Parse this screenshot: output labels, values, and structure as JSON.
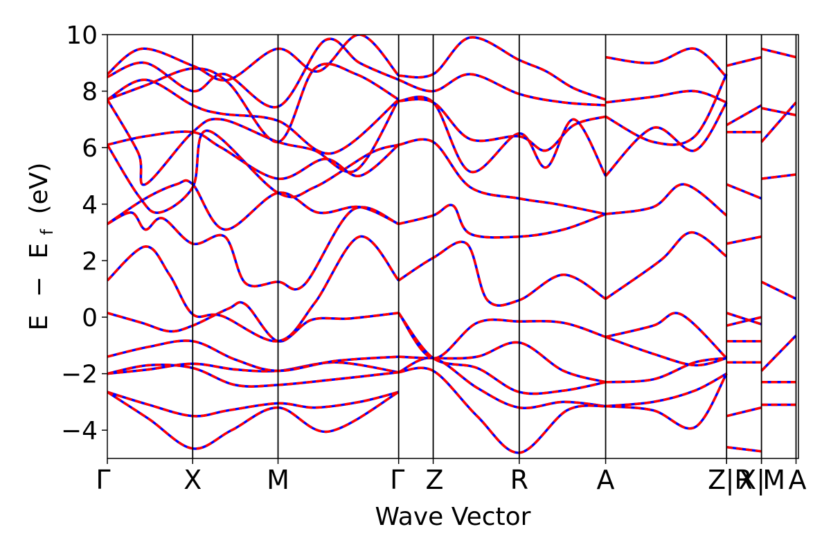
{
  "chart_data": {
    "type": "line",
    "title": "",
    "xlabel": "Wave Vector",
    "ylabel_parts": [
      "E",
      "−",
      "E",
      "f",
      "(eV)"
    ],
    "ylim": [
      -5,
      10
    ],
    "yticks": [
      -4,
      -2,
      0,
      2,
      4,
      6,
      8,
      10
    ],
    "ytick_labels": [
      "−4",
      "−2",
      "0",
      "2",
      "4",
      "6",
      "8",
      "10"
    ],
    "xlim": [
      0,
      20
    ],
    "high_symmetry_points": [
      {
        "label": "Γ",
        "x": 0
      },
      {
        "label": "X",
        "x": 2.47
      },
      {
        "label": "M",
        "x": 4.94
      },
      {
        "label": "Γ",
        "x": 8.43
      },
      {
        "label": "Z",
        "x": 9.43
      },
      {
        "label": "R",
        "x": 11.92
      },
      {
        "label": "A",
        "x": 14.42
      },
      {
        "label": "Z",
        "x": 17.92
      },
      {
        "label": "|R",
        "x": 17.92
      },
      {
        "label": "X|",
        "x": 18.93
      },
      {
        "label": "M",
        "x": 18.93
      },
      {
        "label": "A",
        "x": 19.93
      }
    ],
    "grid": false,
    "legend": "none",
    "series_styles": [
      {
        "role": "reference",
        "color": "#0000ff",
        "style": "solid"
      },
      {
        "role": "overlay",
        "color": "#ff0000",
        "style": "dashed"
      }
    ],
    "bands": [
      [
        [
          0,
          -2.65
        ],
        [
          1.2,
          -3.1
        ],
        [
          2.47,
          -3.5
        ],
        [
          3.5,
          -3.3
        ],
        [
          4.94,
          -3.05
        ],
        [
          6,
          -3.2
        ],
        [
          7.3,
          -3.0
        ],
        [
          8.43,
          -2.65
        ]
      ],
      [
        [
          0,
          -2.65
        ],
        [
          1.2,
          -3.6
        ],
        [
          2.47,
          -4.65
        ],
        [
          3.6,
          -4.0
        ],
        [
          4.94,
          -3.2
        ],
        [
          6.4,
          -4.05
        ],
        [
          8.43,
          -2.65
        ]
      ],
      [
        [
          0,
          -2.0
        ],
        [
          1.2,
          -1.85
        ],
        [
          2.47,
          -1.65
        ],
        [
          3.7,
          -1.85
        ],
        [
          4.94,
          -1.9
        ],
        [
          6.6,
          -1.6
        ],
        [
          8.43,
          -1.95
        ]
      ],
      [
        [
          0,
          -2.0
        ],
        [
          1.2,
          -1.7
        ],
        [
          2.47,
          -1.8
        ],
        [
          3.7,
          -2.4
        ],
        [
          4.94,
          -2.4
        ],
        [
          6.6,
          -2.2
        ],
        [
          8.43,
          -1.95
        ]
      ],
      [
        [
          0,
          -1.4
        ],
        [
          1.2,
          -1.05
        ],
        [
          2.47,
          -0.85
        ],
        [
          3.7,
          -1.5
        ],
        [
          4.94,
          -1.9
        ],
        [
          6.6,
          -1.55
        ],
        [
          8.43,
          -1.4
        ]
      ],
      [
        [
          0,
          0.15
        ],
        [
          1.0,
          -0.2
        ],
        [
          1.8,
          -0.5
        ],
        [
          2.47,
          -0.3
        ],
        [
          3.5,
          0.3
        ],
        [
          4.0,
          0.45
        ],
        [
          4.94,
          -0.85
        ],
        [
          5.9,
          -0.1
        ],
        [
          7.0,
          -0.05
        ],
        [
          8.43,
          0.15
        ]
      ],
      [
        [
          0,
          1.3
        ],
        [
          1.1,
          2.5
        ],
        [
          1.8,
          1.5
        ],
        [
          2.47,
          0.1
        ],
        [
          3.3,
          0.05
        ],
        [
          4.94,
          -0.85
        ],
        [
          6.0,
          0.5
        ],
        [
          7.3,
          2.85
        ],
        [
          8.43,
          1.3
        ]
      ],
      [
        [
          0,
          3.3
        ],
        [
          0.7,
          3.7
        ],
        [
          1.1,
          3.1
        ],
        [
          1.6,
          3.5
        ],
        [
          2.47,
          2.6
        ],
        [
          3.4,
          2.85
        ],
        [
          4.0,
          1.2
        ],
        [
          4.94,
          1.25
        ],
        [
          5.7,
          1.15
        ],
        [
          7.1,
          3.8
        ],
        [
          8.43,
          3.3
        ]
      ],
      [
        [
          0,
          3.3
        ],
        [
          1.1,
          4.2
        ],
        [
          2.0,
          4.7
        ],
        [
          2.47,
          4.7
        ],
        [
          3.4,
          3.1
        ],
        [
          4.94,
          4.4
        ],
        [
          6.1,
          3.7
        ],
        [
          7.3,
          3.9
        ],
        [
          8.43,
          3.3
        ]
      ],
      [
        [
          0,
          6.1
        ],
        [
          0.9,
          4.3
        ],
        [
          1.5,
          3.7
        ],
        [
          2.47,
          4.6
        ],
        [
          2.9,
          6.6
        ],
        [
          4.94,
          4.4
        ],
        [
          6.0,
          4.6
        ],
        [
          7.6,
          5.8
        ],
        [
          8.43,
          6.1
        ]
      ],
      [
        [
          0,
          6.1
        ],
        [
          1.1,
          6.4
        ],
        [
          2.47,
          6.55
        ],
        [
          3.3,
          6.0
        ],
        [
          4.94,
          4.9
        ],
        [
          6.3,
          5.6
        ],
        [
          7.3,
          5.0
        ],
        [
          8.43,
          6.1
        ]
      ],
      [
        [
          0,
          7.7
        ],
        [
          0.9,
          5.8
        ],
        [
          1.1,
          4.7
        ],
        [
          2.47,
          6.55
        ],
        [
          3.3,
          7.0
        ],
        [
          4.94,
          6.2
        ],
        [
          6.0,
          5.9
        ],
        [
          7.2,
          5.2
        ],
        [
          8.43,
          7.7
        ]
      ],
      [
        [
          0,
          7.7
        ],
        [
          1.1,
          8.4
        ],
        [
          2.47,
          7.5
        ],
        [
          3.3,
          7.2
        ],
        [
          4.94,
          6.95
        ],
        [
          6.5,
          5.8
        ],
        [
          8.43,
          7.7
        ]
      ],
      [
        [
          0,
          7.7
        ],
        [
          1.1,
          8.2
        ],
        [
          2.47,
          8.8
        ],
        [
          3.5,
          8.3
        ],
        [
          4.94,
          6.2
        ],
        [
          6.0,
          8.8
        ],
        [
          7.2,
          8.6
        ],
        [
          8.43,
          7.7
        ]
      ],
      [
        [
          0,
          8.5
        ],
        [
          1.1,
          9.0
        ],
        [
          2.47,
          8.0
        ],
        [
          3.4,
          8.6
        ],
        [
          4.94,
          7.45
        ],
        [
          6.3,
          9.8
        ],
        [
          7.3,
          9.0
        ],
        [
          8.43,
          8.4
        ]
      ],
      [
        [
          0,
          8.6
        ],
        [
          1.0,
          9.5
        ],
        [
          2.47,
          8.9
        ],
        [
          3.5,
          8.4
        ],
        [
          4.94,
          9.5
        ],
        [
          6.1,
          8.7
        ],
        [
          7.3,
          10.0
        ],
        [
          8.43,
          8.55
        ]
      ],
      [
        [
          8.43,
          -1.95
        ],
        [
          9.43,
          -1.45
        ],
        [
          10.7,
          -2.5
        ],
        [
          11.92,
          -3.2
        ],
        [
          13.2,
          -3.0
        ],
        [
          14.42,
          -3.15
        ]
      ],
      [
        [
          8.43,
          -1.95
        ],
        [
          9.43,
          -1.9
        ],
        [
          10.7,
          -3.5
        ],
        [
          11.92,
          -4.8
        ],
        [
          13.3,
          -3.3
        ],
        [
          14.42,
          -3.15
        ]
      ],
      [
        [
          8.43,
          -1.4
        ],
        [
          9.43,
          -1.45
        ],
        [
          10.7,
          -1.4
        ],
        [
          11.92,
          -0.9
        ],
        [
          13.2,
          -1.9
        ],
        [
          14.42,
          -2.3
        ]
      ],
      [
        [
          8.43,
          0.15
        ],
        [
          9.43,
          -1.45
        ],
        [
          10.7,
          -0.2
        ],
        [
          11.92,
          -0.15
        ],
        [
          13.2,
          -0.2
        ],
        [
          14.42,
          -0.7
        ]
      ],
      [
        [
          8.43,
          0.15
        ],
        [
          9.43,
          -1.45
        ],
        [
          10.7,
          -1.8
        ],
        [
          11.92,
          -2.65
        ],
        [
          13.2,
          -2.6
        ],
        [
          14.42,
          -2.3
        ]
      ],
      [
        [
          8.43,
          1.3
        ],
        [
          9.43,
          2.1
        ],
        [
          10.4,
          2.6
        ],
        [
          11.0,
          0.6
        ],
        [
          11.92,
          0.6
        ],
        [
          13.2,
          1.5
        ],
        [
          14.42,
          0.65
        ]
      ],
      [
        [
          8.43,
          3.3
        ],
        [
          9.43,
          3.6
        ],
        [
          10.0,
          3.95
        ],
        [
          10.5,
          2.95
        ],
        [
          11.92,
          2.85
        ],
        [
          13.2,
          3.1
        ],
        [
          14.42,
          3.65
        ]
      ],
      [
        [
          8.43,
          6.1
        ],
        [
          9.43,
          6.2
        ],
        [
          10.5,
          4.6
        ],
        [
          11.92,
          4.2
        ],
        [
          13.0,
          4.0
        ],
        [
          14.42,
          3.65
        ]
      ],
      [
        [
          8.43,
          7.65
        ],
        [
          9.43,
          7.6
        ],
        [
          10.5,
          5.15
        ],
        [
          11.92,
          6.5
        ],
        [
          12.7,
          5.3
        ],
        [
          13.5,
          7.0
        ],
        [
          14.42,
          5.0
        ]
      ],
      [
        [
          8.43,
          7.65
        ],
        [
          9.43,
          7.6
        ],
        [
          10.5,
          6.3
        ],
        [
          11.92,
          6.4
        ],
        [
          12.7,
          5.9
        ],
        [
          13.5,
          6.8
        ],
        [
          14.42,
          7.1
        ]
      ],
      [
        [
          8.43,
          8.4
        ],
        [
          9.43,
          8.0
        ],
        [
          10.5,
          8.6
        ],
        [
          11.92,
          7.9
        ],
        [
          13.2,
          7.6
        ],
        [
          14.42,
          7.5
        ]
      ],
      [
        [
          8.43,
          8.55
        ],
        [
          9.43,
          8.6
        ],
        [
          10.5,
          9.9
        ],
        [
          11.92,
          9.1
        ],
        [
          12.7,
          8.7
        ],
        [
          13.5,
          8.1
        ],
        [
          14.42,
          7.7
        ]
      ],
      [
        [
          14.42,
          -3.15
        ],
        [
          15.8,
          -3.0
        ],
        [
          17.0,
          -2.6
        ],
        [
          17.92,
          -2.0
        ]
      ],
      [
        [
          14.42,
          -3.15
        ],
        [
          15.8,
          -3.3
        ],
        [
          17.0,
          -3.9
        ],
        [
          17.92,
          -2.0
        ]
      ],
      [
        [
          14.42,
          -2.3
        ],
        [
          15.8,
          -2.2
        ],
        [
          17.0,
          -1.6
        ],
        [
          17.92,
          -1.45
        ]
      ],
      [
        [
          14.42,
          -0.7
        ],
        [
          15.8,
          -1.3
        ],
        [
          17.0,
          -1.7
        ],
        [
          17.92,
          -1.45
        ]
      ],
      [
        [
          14.42,
          -0.7
        ],
        [
          15.8,
          -0.3
        ],
        [
          16.6,
          0.1
        ],
        [
          17.92,
          -1.45
        ]
      ],
      [
        [
          14.42,
          0.65
        ],
        [
          16.0,
          2.0
        ],
        [
          16.9,
          3.0
        ],
        [
          17.92,
          2.15
        ]
      ],
      [
        [
          14.42,
          3.65
        ],
        [
          15.8,
          3.9
        ],
        [
          16.7,
          4.7
        ],
        [
          17.92,
          3.6
        ]
      ],
      [
        [
          14.42,
          5.0
        ],
        [
          15.8,
          6.7
        ],
        [
          17.0,
          5.9
        ],
        [
          17.92,
          7.6
        ]
      ],
      [
        [
          14.42,
          7.1
        ],
        [
          15.8,
          6.2
        ],
        [
          17.0,
          6.4
        ],
        [
          17.92,
          8.6
        ]
      ],
      [
        [
          14.42,
          7.6
        ],
        [
          15.8,
          7.8
        ],
        [
          17.0,
          8.0
        ],
        [
          17.92,
          7.6
        ]
      ],
      [
        [
          14.42,
          9.2
        ],
        [
          15.8,
          9.0
        ],
        [
          17.0,
          9.5
        ],
        [
          17.92,
          8.5
        ]
      ],
      [
        [
          17.92,
          -4.6
        ],
        [
          18.93,
          -4.75
        ]
      ],
      [
        [
          17.92,
          -3.5
        ],
        [
          18.93,
          -3.2
        ]
      ],
      [
        [
          17.92,
          -1.6
        ],
        [
          18.93,
          -1.6
        ]
      ],
      [
        [
          17.92,
          -0.85
        ],
        [
          18.93,
          -0.85
        ]
      ],
      [
        [
          17.92,
          -0.3
        ],
        [
          18.93,
          0.0
        ]
      ],
      [
        [
          17.92,
          0.15
        ],
        [
          18.93,
          -0.25
        ]
      ],
      [
        [
          17.92,
          2.6
        ],
        [
          18.93,
          2.85
        ]
      ],
      [
        [
          17.92,
          4.7
        ],
        [
          18.93,
          4.2
        ]
      ],
      [
        [
          17.92,
          6.55
        ],
        [
          18.93,
          6.55
        ]
      ],
      [
        [
          17.92,
          6.8
        ],
        [
          18.93,
          7.5
        ]
      ],
      [
        [
          17.92,
          8.9
        ],
        [
          18.93,
          9.2
        ]
      ],
      [
        [
          18.93,
          -3.1
        ],
        [
          19.93,
          -3.1
        ]
      ],
      [
        [
          18.93,
          -2.3
        ],
        [
          19.93,
          -2.3
        ]
      ],
      [
        [
          18.93,
          -1.9
        ],
        [
          19.93,
          -0.65
        ]
      ],
      [
        [
          18.93,
          1.25
        ],
        [
          19.93,
          0.65
        ]
      ],
      [
        [
          18.93,
          4.9
        ],
        [
          19.93,
          5.05
        ]
      ],
      [
        [
          18.93,
          6.2
        ],
        [
          19.93,
          7.6
        ]
      ],
      [
        [
          18.93,
          7.4
        ],
        [
          19.93,
          7.15
        ]
      ],
      [
        [
          18.93,
          9.5
        ],
        [
          19.93,
          9.2
        ]
      ]
    ]
  }
}
